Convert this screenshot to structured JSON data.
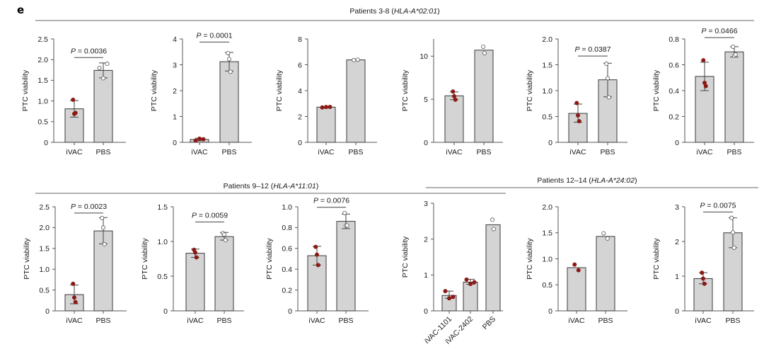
{
  "figure": {
    "panel_letter": "e",
    "groups": [
      {
        "title_prefix": "Patients 3-8 (",
        "title_italic": "HLA-A*02:01",
        "title_suffix": ")"
      },
      {
        "title_prefix": "Patients 9–12 (",
        "title_italic": "HLA-A*11:01",
        "title_suffix": ")"
      },
      {
        "title_prefix": "Patients 12–14 (",
        "title_italic": "HLA-A*24:02",
        "title_suffix": ")"
      }
    ],
    "colors": {
      "bar_fill": "#d4d4d4",
      "bar_stroke": "#3a3a3a",
      "ivac_point": "#8b1a14",
      "pbs_point": "#ffffff",
      "axis": "#555555",
      "group_line": "#9a9a9a"
    }
  },
  "chart_data": [
    {
      "type": "bar",
      "group": 0,
      "title": "",
      "xlabel": "",
      "ylabel": "PTC viability",
      "ylim": [
        0,
        2.5
      ],
      "yticks": [
        "0",
        "0.5",
        "1.0",
        "1.5",
        "2.0",
        "2.5"
      ],
      "ytick_values": [
        0,
        0.5,
        1.0,
        1.5,
        2.0,
        2.5
      ],
      "categories": [
        "iVAC",
        "PBS"
      ],
      "values": [
        0.81,
        1.74
      ],
      "error": [
        [
          0.61,
          1.01
        ],
        [
          1.56,
          1.92
        ]
      ],
      "points": [
        [
          1.03,
          0.69,
          0.71
        ],
        [
          1.8,
          1.55,
          1.9
        ]
      ],
      "pvalue": "0.0036",
      "p_y": 2.05
    },
    {
      "type": "bar",
      "group": 0,
      "ylabel": "PTC viability",
      "ylim": [
        0,
        4
      ],
      "yticks": [
        "0",
        "1",
        "2",
        "3",
        "4"
      ],
      "ytick_values": [
        0,
        1,
        2,
        3,
        4
      ],
      "categories": [
        "iVAC",
        "PBS"
      ],
      "values": [
        0.11,
        3.12
      ],
      "error": [
        [
          0.06,
          0.16
        ],
        [
          2.76,
          3.48
        ]
      ],
      "points": [
        [
          0.07,
          0.14,
          0.12
        ],
        [
          3.45,
          3.22,
          2.73
        ]
      ],
      "pvalue": "0.0001",
      "p_y": 3.88
    },
    {
      "type": "bar",
      "group": 0,
      "ylabel": "PTC viability",
      "ylim": [
        0,
        8
      ],
      "yticks": [
        "0",
        "2",
        "4",
        "6",
        "8"
      ],
      "ytick_values": [
        0,
        2,
        4,
        6,
        8
      ],
      "categories": [
        "iVAC",
        "PBS"
      ],
      "values": [
        2.72,
        6.38
      ],
      "error": null,
      "points": [
        [
          2.7,
          2.73,
          2.74
        ],
        [
          6.36,
          6.4
        ]
      ],
      "pvalue": null
    },
    {
      "type": "bar",
      "group": 0,
      "ylabel": "PTC viability",
      "ylim": [
        0,
        12
      ],
      "yticks": [
        "0",
        "5",
        "10"
      ],
      "ytick_values": [
        0,
        5,
        10
      ],
      "categories": [
        "iVAC",
        "PBS"
      ],
      "values": [
        5.4,
        10.7
      ],
      "error": [
        [
          4.95,
          5.85
        ],
        null
      ],
      "points": [
        [
          5.9,
          5.35,
          4.95
        ],
        [
          11.1,
          10.35
        ]
      ],
      "pvalue": null
    },
    {
      "type": "bar",
      "group": 0,
      "ylabel": "PTC viability",
      "ylim": [
        0,
        2.0
      ],
      "yticks": [
        "0",
        "0.5",
        "1.0",
        "1.5",
        "2.0"
      ],
      "ytick_values": [
        0,
        0.5,
        1.0,
        1.5,
        2.0
      ],
      "categories": [
        "iVAC",
        "PBS"
      ],
      "values": [
        0.56,
        1.21
      ],
      "error": [
        [
          0.39,
          0.74
        ],
        [
          0.88,
          1.53
        ]
      ],
      "points": [
        [
          0.76,
          0.52,
          0.41
        ],
        [
          1.52,
          1.24,
          0.87
        ]
      ],
      "pvalue": "0.0387",
      "p_y": 1.67
    },
    {
      "type": "bar",
      "group": 0,
      "ylabel": "PTC viability",
      "ylim": [
        0,
        0.8
      ],
      "yticks": [
        "0",
        "0.2",
        "0.4",
        "0.6",
        "0.8"
      ],
      "ytick_values": [
        0,
        0.2,
        0.4,
        0.6,
        0.8
      ],
      "categories": [
        "iVAC",
        "PBS"
      ],
      "values": [
        0.51,
        0.7
      ],
      "error": [
        [
          0.4,
          0.62
        ],
        [
          0.66,
          0.74
        ]
      ],
      "points": [
        [
          0.635,
          0.46,
          0.435
        ],
        [
          0.74,
          0.67,
          0.68
        ]
      ],
      "pvalue": "0.0466",
      "p_y": 0.81
    },
    {
      "type": "bar",
      "group": 1,
      "ylabel": "PTC viability",
      "ylim": [
        0,
        2.5
      ],
      "yticks": [
        "0",
        "0.5",
        "1.0",
        "1.5",
        "2.0",
        "2.5"
      ],
      "ytick_values": [
        0,
        0.5,
        1.0,
        1.5,
        2.0,
        2.5
      ],
      "categories": [
        "iVAC",
        "PBS"
      ],
      "values": [
        0.39,
        1.92
      ],
      "error": [
        [
          0.17,
          0.62
        ],
        [
          1.61,
          2.24
        ]
      ],
      "points": [
        [
          0.65,
          0.32,
          0.21
        ],
        [
          2.23,
          2.0,
          1.6
        ]
      ],
      "pvalue": "0.0023",
      "p_y": 2.35
    },
    {
      "type": "bar",
      "group": 1,
      "ylabel": "PTC viability",
      "ylim": [
        0,
        1.5
      ],
      "yticks": [
        "0",
        "0.5",
        "1.0",
        "1.5"
      ],
      "ytick_values": [
        0,
        0.5,
        1.0,
        1.5
      ],
      "categories": [
        "iVAC",
        "PBS"
      ],
      "values": [
        0.83,
        1.07
      ],
      "error": [
        [
          0.77,
          0.89
        ],
        [
          1.02,
          1.13
        ]
      ],
      "points": [
        [
          0.88,
          0.84,
          0.77
        ],
        [
          1.12,
          1.1,
          1.02
        ]
      ],
      "pvalue": "0.0059",
      "p_y": 1.28
    },
    {
      "type": "bar",
      "group": 1,
      "ylabel": "PTC viability",
      "ylim": [
        0,
        1.0
      ],
      "yticks": [
        "0",
        "0.2",
        "0.4",
        "0.6",
        "0.8",
        "1.0"
      ],
      "ytick_values": [
        0,
        0.2,
        0.4,
        0.6,
        0.8,
        1.0
      ],
      "categories": [
        "iVAC",
        "PBS"
      ],
      "values": [
        0.53,
        0.86
      ],
      "error": [
        [
          0.44,
          0.62
        ],
        [
          0.79,
          0.93
        ]
      ],
      "points": [
        [
          0.615,
          0.54,
          0.44
        ],
        [
          0.94,
          0.82,
          0.82
        ]
      ],
      "pvalue": "0.0076",
      "p_y": 0.995
    },
    {
      "type": "bar",
      "group": 2,
      "ylabel": "PTC viability",
      "rotated_xticks": true,
      "ylim": [
        0,
        3
      ],
      "yticks": [
        "0",
        "1",
        "2",
        "3"
      ],
      "ytick_values": [
        0,
        1,
        2,
        3
      ],
      "categories": [
        "iVAC-1101",
        "iVAC-2402",
        "PBS"
      ],
      "values": [
        0.43,
        0.8,
        2.4
      ],
      "error": [
        [
          0.35,
          0.55
        ],
        [
          0.74,
          0.88
        ],
        null
      ],
      "points": [
        [
          0.55,
          0.35,
          0.39
        ],
        [
          0.87,
          0.75,
          0.8
        ],
        [
          2.54,
          2.28
        ]
      ],
      "pvalue": null
    },
    {
      "type": "bar",
      "group": 2,
      "ylabel": "PTC viability",
      "ylim": [
        0,
        2.0
      ],
      "yticks": [
        "0",
        "0.5",
        "1.0",
        "1.5",
        "2.0"
      ],
      "ytick_values": [
        0,
        0.5,
        1.0,
        1.5,
        2.0
      ],
      "categories": [
        "iVAC",
        "PBS"
      ],
      "values": [
        0.83,
        1.43
      ],
      "error": null,
      "points": [
        [
          0.89,
          0.78
        ],
        [
          1.49,
          1.39
        ]
      ],
      "pvalue": null
    },
    {
      "type": "bar",
      "group": 2,
      "ylabel": "PTC viability",
      "ylim": [
        0,
        3
      ],
      "yticks": [
        "0",
        "1",
        "2",
        "3"
      ],
      "ytick_values": [
        0,
        1,
        2,
        3
      ],
      "categories": [
        "iVAC",
        "PBS"
      ],
      "values": [
        0.93,
        2.25
      ],
      "error": [
        [
          0.78,
          1.1
        ],
        [
          1.82,
          2.68
        ]
      ],
      "points": [
        [
          1.1,
          0.93,
          0.78
        ],
        [
          2.68,
          2.26,
          1.82
        ]
      ],
      "pvalue": "0.0075",
      "p_y": 2.85
    }
  ]
}
